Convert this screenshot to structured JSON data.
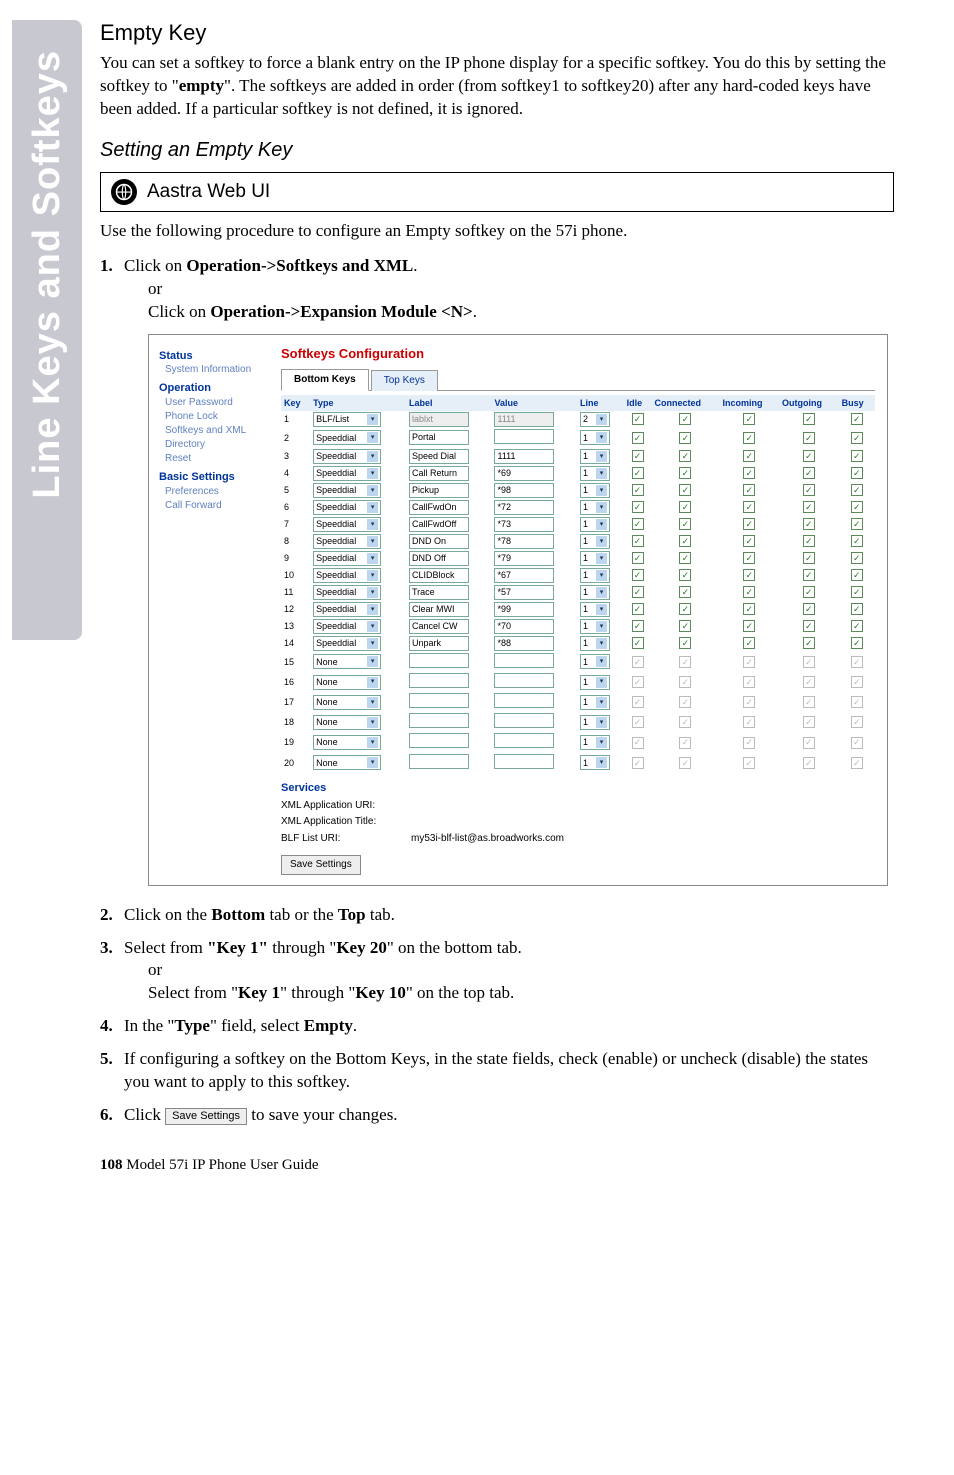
{
  "sidetab": "Line Keys and Softkeys",
  "heading": "Empty Key",
  "intro": "You can set a softkey to force a blank entry on the IP phone display for a specific softkey.  You do this by setting the softkey to \"",
  "intro_bold": "empty",
  "intro_tail": "\". The softkeys are added in order (from softkey1 to softkey20) after any hard-coded keys have been added. If a particular softkey is not defined, it is ignored.",
  "heading2": "Setting an Empty Key",
  "aastra": "Aastra Web UI",
  "usep": "Use the following procedure to configure an Empty softkey on the 57i phone.",
  "steps": {
    "s1a": "Click on ",
    "s1b": "Operation->Softkeys and XML",
    "s1c": ".",
    "s1d": "or",
    "s1e": "Click on ",
    "s1f": "Operation->Expansion Module <N>",
    "s1g": ".",
    "s2a": "Click on the ",
    "s2b": "Bottom",
    "s2c": " tab or the ",
    "s2d": "Top",
    "s2e": " tab.",
    "s3a": "Select from ",
    "s3b": "\"Key 1\"",
    "s3c": " through \"",
    "s3d": "Key 20",
    "s3e": "\" on the bottom tab.",
    "s3f": "or",
    "s3g": "Select from \"",
    "s3h": "Key 1",
    "s3i": "\" through \"",
    "s3j": "Key 10",
    "s3k": "\" on the top tab.",
    "s4a": "In the \"",
    "s4b": "Type",
    "s4c": "\" field, select ",
    "s4d": "Empty",
    "s4e": ".",
    "s5": "If configuring a softkey on the Bottom Keys, in the state fields, check (enable) or uncheck (disable) the states you want to apply to this softkey.",
    "s6a": "Click ",
    "s6b": "Save Settings",
    "s6c": " to save your changes."
  },
  "footer_page": "108",
  "footer_text": "  Model 57i IP Phone User Guide",
  "ss": {
    "nav": {
      "h1": "Status",
      "i1": "System Information",
      "h2": "Operation",
      "i2": "User Password",
      "i3": "Phone Lock",
      "i4": "Softkeys and XML",
      "i5": "Directory",
      "i6": "Reset",
      "h3": "Basic Settings",
      "i7": "Preferences",
      "i8": "Call Forward"
    },
    "title": "Softkeys Configuration",
    "tab1": "Bottom Keys",
    "tab2": "Top Keys",
    "cols": [
      "Key",
      "Type",
      "Label",
      "Value",
      "Line",
      "Idle",
      "Connected",
      "Incoming",
      "Outgoing",
      "Busy"
    ],
    "rows": [
      {
        "k": "1",
        "type": "BLF/List",
        "label": "lablxt",
        "value": "1111",
        "line": "2",
        "dis": false,
        "ro": true
      },
      {
        "k": "2",
        "type": "Speeddial",
        "label": "Portal",
        "value": "",
        "line": "1",
        "dis": false
      },
      {
        "k": "3",
        "type": "Speeddial",
        "label": "Speed Dial",
        "value": "1111",
        "line": "1",
        "dis": false
      },
      {
        "k": "4",
        "type": "Speeddial",
        "label": "Call Return",
        "value": "*69",
        "line": "1",
        "dis": false
      },
      {
        "k": "5",
        "type": "Speeddial",
        "label": "Pickup",
        "value": "*98",
        "line": "1",
        "dis": false
      },
      {
        "k": "6",
        "type": "Speeddial",
        "label": "CallFwdOn",
        "value": "*72",
        "line": "1",
        "dis": false
      },
      {
        "k": "7",
        "type": "Speeddial",
        "label": "CallFwdOff",
        "value": "*73",
        "line": "1",
        "dis": false
      },
      {
        "k": "8",
        "type": "Speeddial",
        "label": "DND On",
        "value": "*78",
        "line": "1",
        "dis": false
      },
      {
        "k": "9",
        "type": "Speeddial",
        "label": "DND Off",
        "value": "*79",
        "line": "1",
        "dis": false
      },
      {
        "k": "10",
        "type": "Speeddial",
        "label": "CLIDBlock",
        "value": "*67",
        "line": "1",
        "dis": false
      },
      {
        "k": "11",
        "type": "Speeddial",
        "label": "Trace",
        "value": "*57",
        "line": "1",
        "dis": false
      },
      {
        "k": "12",
        "type": "Speeddial",
        "label": "Clear MWI",
        "value": "*99",
        "line": "1",
        "dis": false
      },
      {
        "k": "13",
        "type": "Speeddial",
        "label": "Cancel CW",
        "value": "*70",
        "line": "1",
        "dis": false
      },
      {
        "k": "14",
        "type": "Speeddial",
        "label": "Unpark",
        "value": "*88",
        "line": "1",
        "dis": false
      },
      {
        "k": "15",
        "type": "None",
        "label": "",
        "value": "",
        "line": "1",
        "dis": true
      },
      {
        "k": "16",
        "type": "None",
        "label": "",
        "value": "",
        "line": "1",
        "dis": true
      },
      {
        "k": "17",
        "type": "None",
        "label": "",
        "value": "",
        "line": "1",
        "dis": true
      },
      {
        "k": "18",
        "type": "None",
        "label": "",
        "value": "",
        "line": "1",
        "dis": true
      },
      {
        "k": "19",
        "type": "None",
        "label": "",
        "value": "",
        "line": "1",
        "dis": true
      },
      {
        "k": "20",
        "type": "None",
        "label": "",
        "value": "",
        "line": "1",
        "dis": true
      }
    ],
    "svc_hd": "Services",
    "svc1": "XML Application URI:",
    "svc2": "XML Application Title:",
    "svc3": "BLF List URI:",
    "svc3v": "my53i-blf-list@as.broadworks.com",
    "save": "Save Settings"
  }
}
